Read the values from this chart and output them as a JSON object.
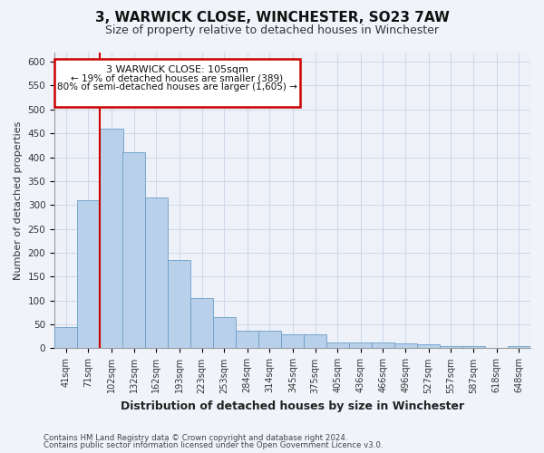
{
  "title": "3, WARWICK CLOSE, WINCHESTER, SO23 7AW",
  "subtitle": "Size of property relative to detached houses in Winchester",
  "xlabel": "Distribution of detached houses by size in Winchester",
  "ylabel": "Number of detached properties",
  "footnote1": "Contains HM Land Registry data © Crown copyright and database right 2024.",
  "footnote2": "Contains public sector information licensed under the Open Government Licence v3.0.",
  "annotation_line1": "3 WARWICK CLOSE: 105sqm",
  "annotation_line2": "← 19% of detached houses are smaller (389)",
  "annotation_line3": "80% of semi-detached houses are larger (1,605) →",
  "bar_color": "#b8d0ea",
  "bar_edge_color": "#6a9ec8",
  "grid_color": "#c8d4e8",
  "vline_color": "#cc0000",
  "annotation_box_color": "#cc0000",
  "bins": [
    41,
    71,
    102,
    132,
    162,
    193,
    223,
    253,
    284,
    314,
    345,
    375,
    405,
    436,
    466,
    496,
    527,
    557,
    587,
    618,
    648
  ],
  "bar_heights": [
    45,
    310,
    460,
    410,
    315,
    185,
    105,
    65,
    37,
    37,
    30,
    30,
    13,
    12,
    12,
    10,
    8,
    5,
    5,
    0,
    5
  ],
  "vline_x": 102,
  "ylim": [
    0,
    620
  ],
  "yticks": [
    0,
    50,
    100,
    150,
    200,
    250,
    300,
    350,
    400,
    450,
    500,
    550,
    600
  ],
  "background_color": "#f0f4fa",
  "plot_background": "#eef2f8",
  "title_fontsize": 11,
  "subtitle_fontsize": 9
}
